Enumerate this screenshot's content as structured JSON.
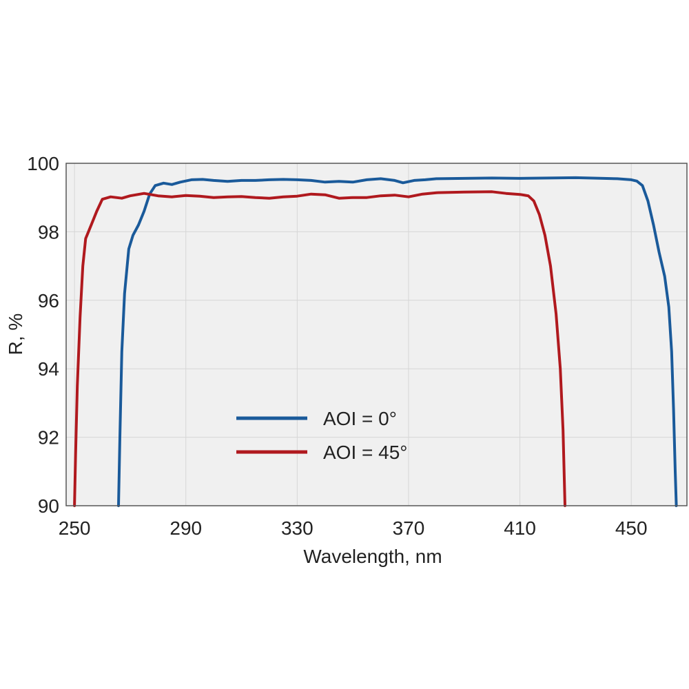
{
  "chart_data": {
    "type": "line",
    "xlabel": "Wavelength, nm",
    "ylabel": "R, %",
    "xlim": [
      247,
      470
    ],
    "ylim": [
      90,
      100
    ],
    "x_ticks": [
      250,
      290,
      330,
      370,
      410,
      450
    ],
    "y_ticks": [
      90,
      92,
      94,
      96,
      98,
      100
    ],
    "x_tick_labels": [
      "250",
      "290",
      "330",
      "370",
      "410",
      "450"
    ],
    "y_tick_labels": [
      "90",
      "92",
      "94",
      "96",
      "98",
      "100"
    ],
    "grid": true,
    "legend_position": "lower-center",
    "series": [
      {
        "name": "AOI = 0°",
        "color": "#1a5a9a",
        "points": [
          [
            265.8,
            90.0
          ],
          [
            266.3,
            92.0
          ],
          [
            267,
            94.5
          ],
          [
            268,
            96.2
          ],
          [
            269.5,
            97.5
          ],
          [
            271,
            97.9
          ],
          [
            273,
            98.2
          ],
          [
            275,
            98.6
          ],
          [
            277,
            99.1
          ],
          [
            279,
            99.35
          ],
          [
            282,
            99.42
          ],
          [
            285,
            99.38
          ],
          [
            288,
            99.45
          ],
          [
            292,
            99.52
          ],
          [
            296,
            99.53
          ],
          [
            300,
            99.5
          ],
          [
            305,
            99.47
          ],
          [
            310,
            99.5
          ],
          [
            315,
            99.5
          ],
          [
            320,
            99.52
          ],
          [
            325,
            99.53
          ],
          [
            330,
            99.52
          ],
          [
            335,
            99.5
          ],
          [
            340,
            99.45
          ],
          [
            345,
            99.47
          ],
          [
            350,
            99.45
          ],
          [
            355,
            99.52
          ],
          [
            360,
            99.55
          ],
          [
            365,
            99.5
          ],
          [
            368,
            99.43
          ],
          [
            372,
            99.5
          ],
          [
            376,
            99.52
          ],
          [
            380,
            99.55
          ],
          [
            390,
            99.56
          ],
          [
            400,
            99.57
          ],
          [
            410,
            99.56
          ],
          [
            420,
            99.57
          ],
          [
            430,
            99.58
          ],
          [
            440,
            99.56
          ],
          [
            445,
            99.55
          ],
          [
            450,
            99.52
          ],
          [
            452,
            99.48
          ],
          [
            454,
            99.35
          ],
          [
            456,
            98.9
          ],
          [
            458,
            98.2
          ],
          [
            460,
            97.4
          ],
          [
            462,
            96.7
          ],
          [
            463.5,
            95.8
          ],
          [
            464.5,
            94.5
          ],
          [
            465.2,
            92.8
          ],
          [
            465.8,
            91.0
          ],
          [
            466.2,
            90.0
          ]
        ]
      },
      {
        "name": "AOI = 45°",
        "color": "#b0191e",
        "points": [
          [
            250.0,
            90.0
          ],
          [
            250.4,
            91.5
          ],
          [
            251,
            93.5
          ],
          [
            252,
            95.5
          ],
          [
            253,
            97.0
          ],
          [
            254,
            97.8
          ],
          [
            256,
            98.2
          ],
          [
            258,
            98.6
          ],
          [
            260,
            98.95
          ],
          [
            263,
            99.02
          ],
          [
            267,
            98.98
          ],
          [
            270,
            99.05
          ],
          [
            275,
            99.12
          ],
          [
            280,
            99.05
          ],
          [
            285,
            99.02
          ],
          [
            290,
            99.06
          ],
          [
            295,
            99.04
          ],
          [
            300,
            99.0
          ],
          [
            305,
            99.02
          ],
          [
            310,
            99.03
          ],
          [
            315,
            99.0
          ],
          [
            320,
            98.98
          ],
          [
            325,
            99.02
          ],
          [
            330,
            99.04
          ],
          [
            335,
            99.1
          ],
          [
            340,
            99.08
          ],
          [
            345,
            98.98
          ],
          [
            350,
            99.0
          ],
          [
            355,
            99.0
          ],
          [
            360,
            99.05
          ],
          [
            365,
            99.07
          ],
          [
            370,
            99.02
          ],
          [
            375,
            99.1
          ],
          [
            380,
            99.14
          ],
          [
            390,
            99.16
          ],
          [
            400,
            99.17
          ],
          [
            405,
            99.12
          ],
          [
            410,
            99.09
          ],
          [
            413,
            99.05
          ],
          [
            415,
            98.9
          ],
          [
            417,
            98.5
          ],
          [
            419,
            97.9
          ],
          [
            421,
            97.0
          ],
          [
            423,
            95.6
          ],
          [
            424.5,
            94.0
          ],
          [
            425.5,
            92.2
          ],
          [
            426.2,
            90.0
          ]
        ]
      }
    ]
  }
}
